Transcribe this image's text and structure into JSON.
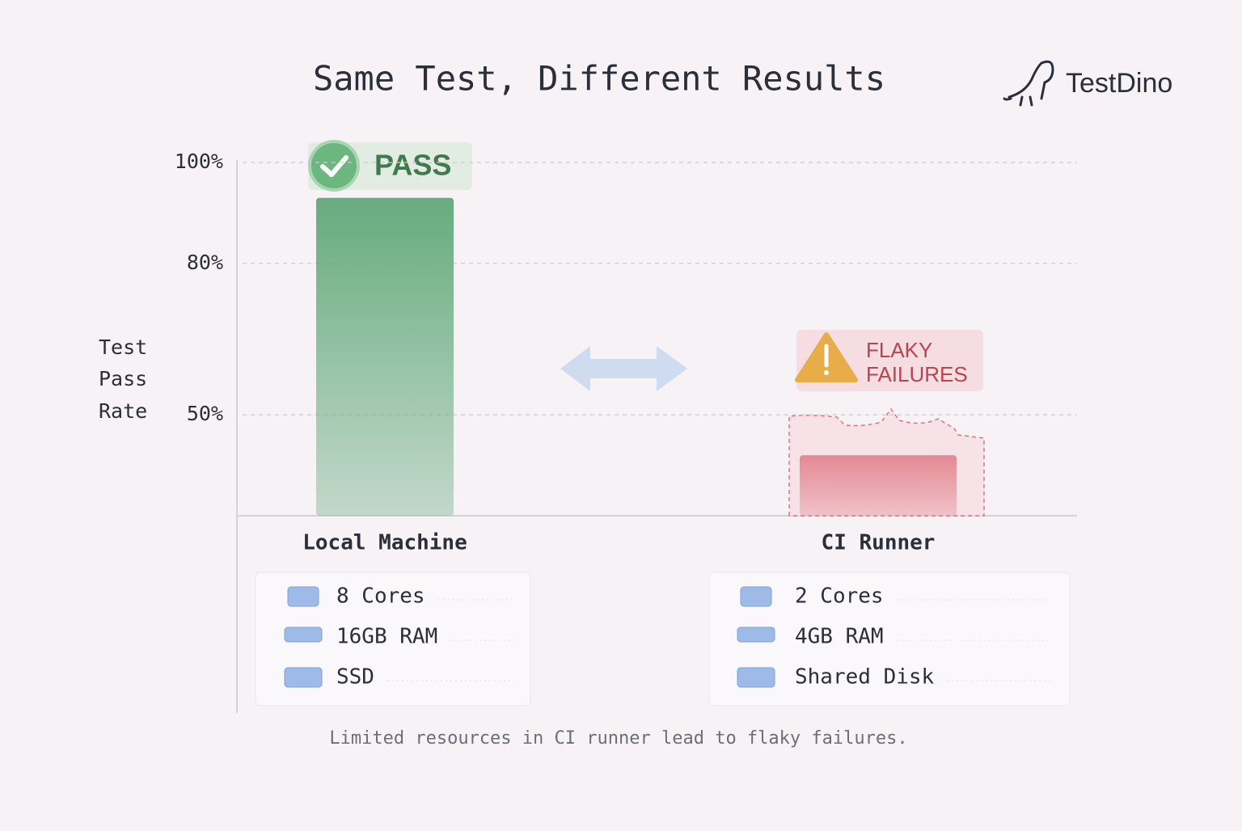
{
  "chart_data": {
    "type": "bar",
    "title": "Same Test, Different Results",
    "ylabel_lines": [
      "Test",
      "Pass",
      "Rate"
    ],
    "categories": [
      "Local Machine",
      "CI Runner"
    ],
    "values": [
      93,
      42
    ],
    "colors": [
      "#5fa878",
      "#e3848f"
    ],
    "ylim": [
      30,
      100
    ],
    "yticks": [
      {
        "value": 50,
        "label": "50%"
      },
      {
        "value": 80,
        "label": "80%"
      },
      {
        "value": 100,
        "label": "100%"
      }
    ],
    "grid": true,
    "annotations": {
      "pass": "PASS",
      "flaky": [
        "FLAKY",
        "FAILURES"
      ]
    }
  },
  "brand": "TestDino",
  "specs": [
    {
      "items": [
        "8 Cores",
        "16GB RAM",
        "SSD"
      ]
    },
    {
      "items": [
        "2 Cores",
        "4GB RAM",
        "Shared Disk"
      ]
    }
  ],
  "caption": "Limited resources in CI runner lead to flaky failures."
}
